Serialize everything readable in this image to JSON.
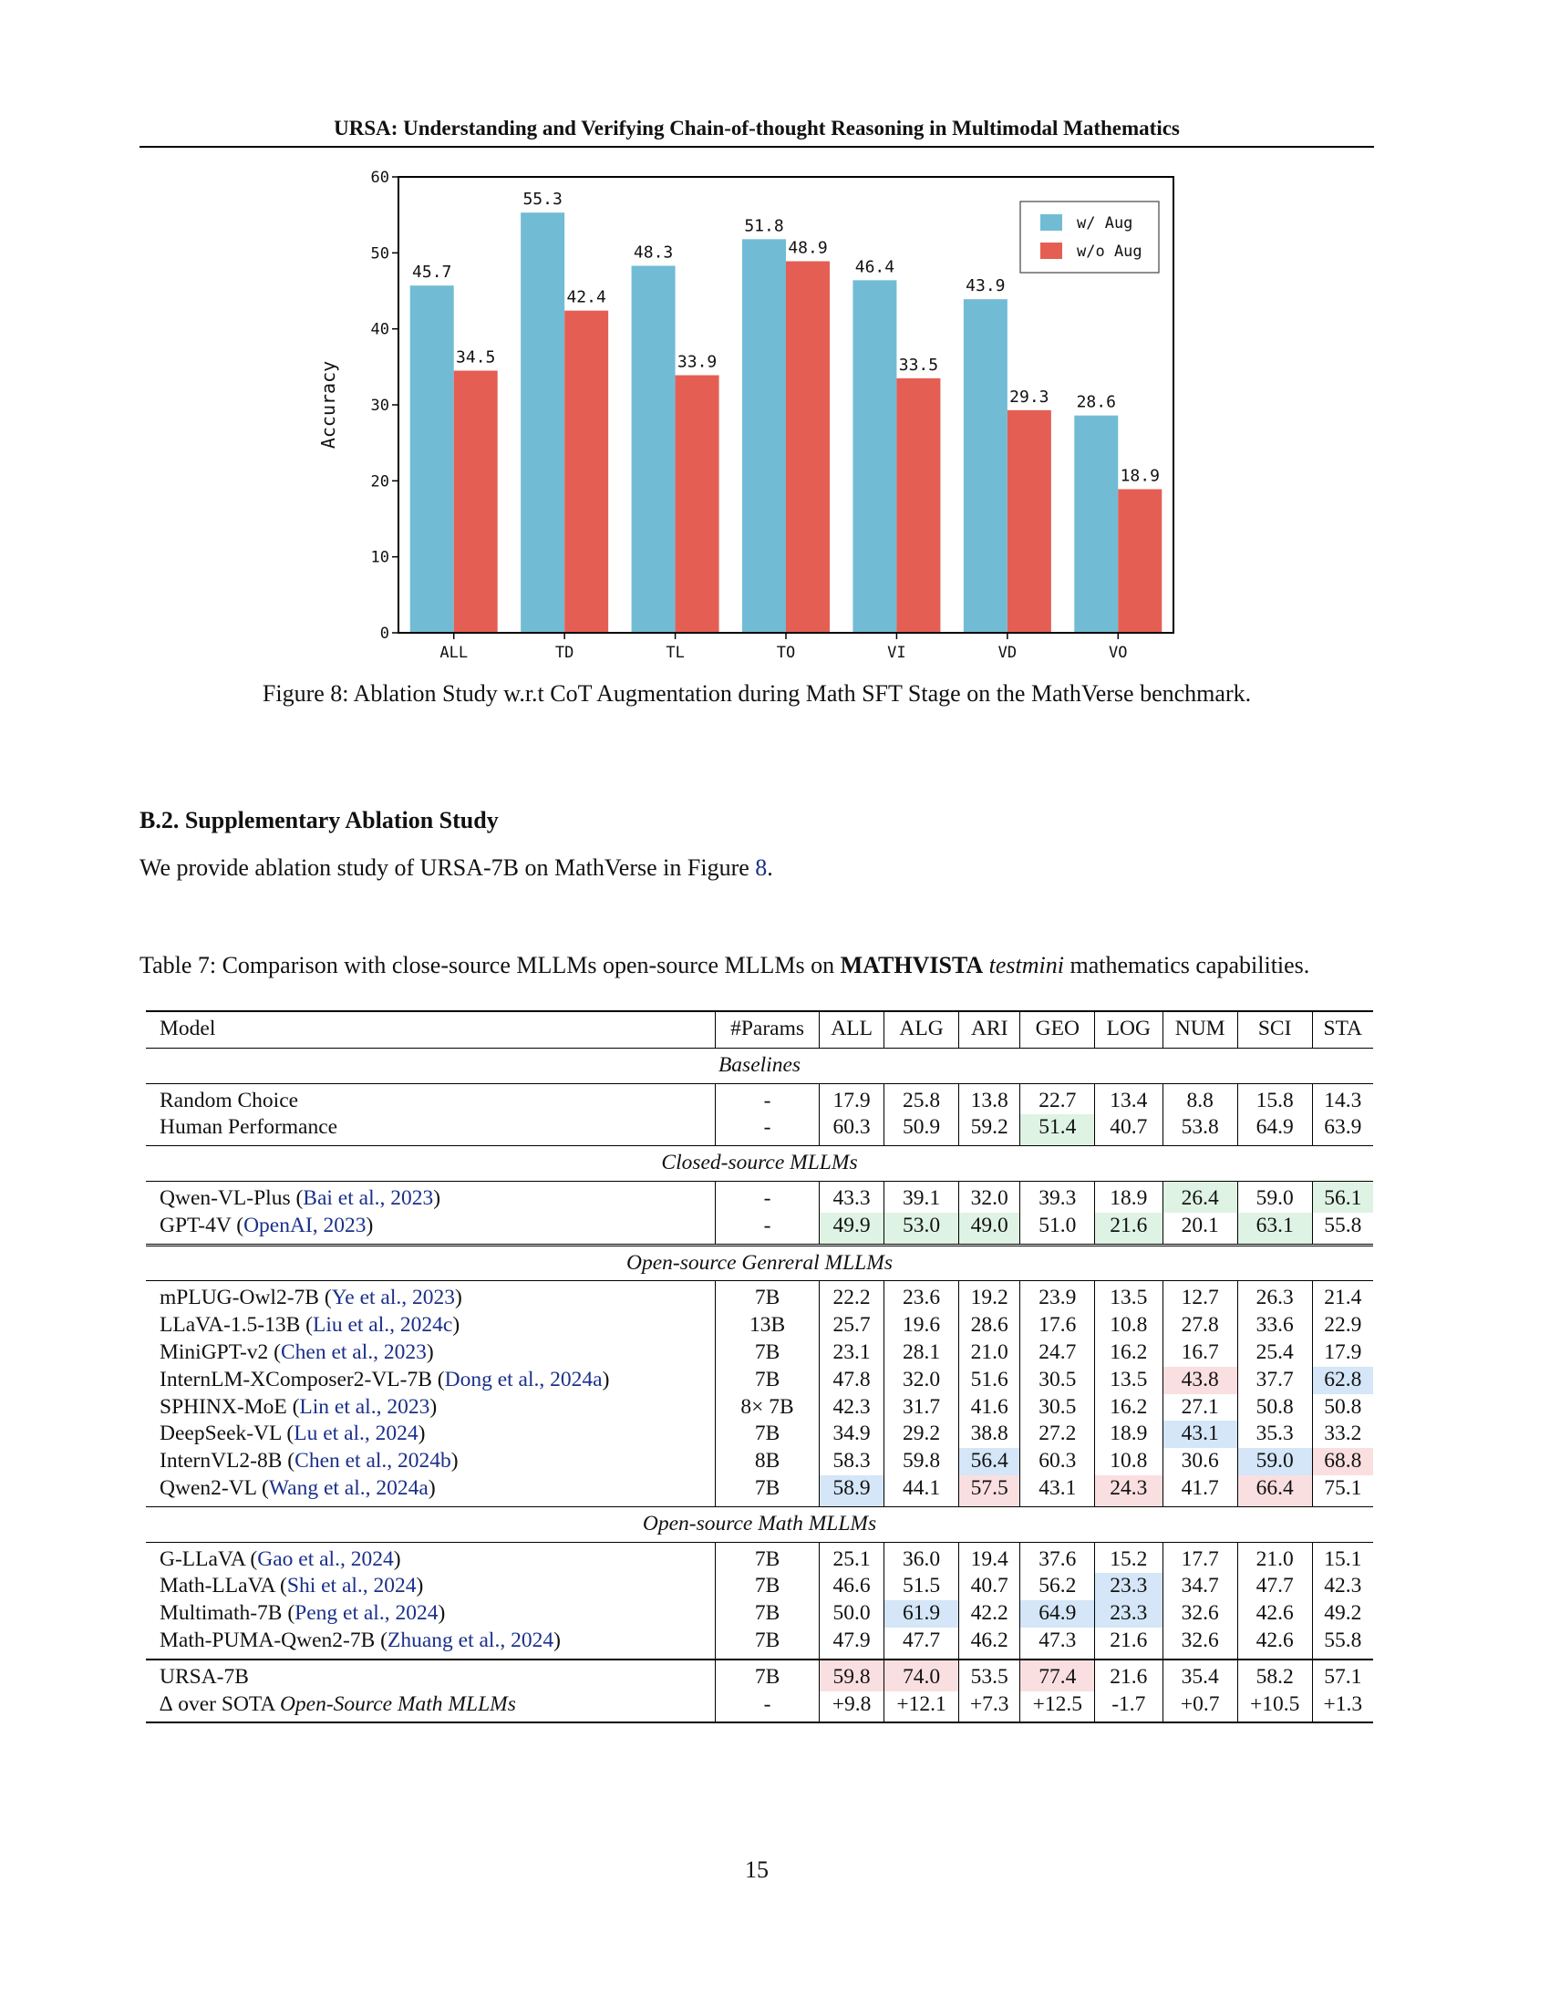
{
  "running_head": "URSA: Understanding and Verifying Chain-of-thought Reasoning in Multimodal Mathematics",
  "chart_data": {
    "type": "bar",
    "categories": [
      "ALL",
      "TD",
      "TL",
      "TO",
      "VI",
      "VD",
      "VO"
    ],
    "series": [
      {
        "name": "w/ Aug",
        "values": [
          45.7,
          55.3,
          48.3,
          51.8,
          46.4,
          43.9,
          28.6
        ],
        "color": "#71bcd4"
      },
      {
        "name": "w/o Aug",
        "values": [
          34.5,
          42.4,
          33.9,
          48.9,
          33.5,
          29.3,
          18.9
        ],
        "color": "#e55e54"
      }
    ],
    "ylabel": "Accuracy",
    "ylim": [
      0,
      60
    ],
    "yticks": [
      0,
      10,
      20,
      30,
      40,
      50,
      60
    ],
    "legend": "top-right",
    "grid": false
  },
  "figure_caption": "Figure 8: Ablation Study w.r.t CoT Augmentation during Math SFT Stage on the MathVerse benchmark.",
  "section": {
    "title": "B.2. Supplementary Ablation Study",
    "text_before": "We provide ablation study of URSA-7B on MathVerse in Figure ",
    "ref": "8",
    "text_after": "."
  },
  "table_caption": {
    "prefix": "Table 7: Comparison with close-source MLLMs open-source MLLMs on ",
    "bench": "MATHVISTA",
    "split": "testmini",
    "suffix": " mathematics capabilities."
  },
  "table": {
    "headers": [
      "Model",
      "#Params",
      "ALL",
      "ALG",
      "ARI",
      "GEO",
      "LOG",
      "NUM",
      "SCI",
      "STA"
    ],
    "groups": [
      {
        "title": "Baselines",
        "rows": [
          {
            "name": "Random Choice",
            "params": "-",
            "vals": [
              "17.9",
              "25.8",
              "13.8",
              "22.7",
              "13.4",
              "8.8",
              "15.8",
              "14.3"
            ],
            "hl": [
              "",
              "",
              "",
              "",
              "",
              "",
              "",
              ""
            ]
          },
          {
            "name": "Human Performance",
            "params": "-",
            "vals": [
              "60.3",
              "50.9",
              "59.2",
              "51.4",
              "40.7",
              "53.8",
              "64.9",
              "63.9"
            ],
            "hl": [
              "",
              "",
              "",
              "g",
              "",
              "",
              "",
              ""
            ]
          }
        ]
      },
      {
        "title": "Closed-source MLLMs",
        "rows": [
          {
            "name": "Qwen-VL-Plus (",
            "ref": "Bai et al., 2023",
            "tail": ")",
            "params": "-",
            "vals": [
              "43.3",
              "39.1",
              "32.0",
              "39.3",
              "18.9",
              "26.4",
              "59.0",
              "56.1"
            ],
            "hl": [
              "",
              "",
              "",
              "",
              "",
              "g",
              "",
              "g"
            ]
          },
          {
            "name": "GPT-4V (",
            "ref": "OpenAI, 2023",
            "tail": ")",
            "params": "-",
            "vals": [
              "49.9",
              "53.0",
              "49.0",
              "51.0",
              "21.6",
              "20.1",
              "63.1",
              "55.8"
            ],
            "hl": [
              "g",
              "g",
              "g",
              "",
              "g",
              "",
              "g",
              ""
            ]
          }
        ]
      },
      {
        "title": "Open-source Genreral MLLMs",
        "rows": [
          {
            "name": "mPLUG-Owl2-7B (",
            "ref": "Ye et al., 2023",
            "tail": ")",
            "params": "7B",
            "vals": [
              "22.2",
              "23.6",
              "19.2",
              "23.9",
              "13.5",
              "12.7",
              "26.3",
              "21.4"
            ],
            "hl": [
              "",
              "",
              "",
              "",
              "",
              "",
              "",
              ""
            ]
          },
          {
            "name": "LLaVA-1.5-13B (",
            "ref": "Liu et al., 2024c",
            "tail": ")",
            "params": "13B",
            "vals": [
              "25.7",
              "19.6",
              "28.6",
              "17.6",
              "10.8",
              "27.8",
              "33.6",
              "22.9"
            ],
            "hl": [
              "",
              "",
              "",
              "",
              "",
              "",
              "",
              ""
            ]
          },
          {
            "name": "MiniGPT-v2 (",
            "ref": "Chen et al., 2023",
            "tail": ")",
            "params": "7B",
            "vals": [
              "23.1",
              "28.1",
              "21.0",
              "24.7",
              "16.2",
              "16.7",
              "25.4",
              "17.9"
            ],
            "hl": [
              "",
              "",
              "",
              "",
              "",
              "",
              "",
              ""
            ]
          },
          {
            "name": "InternLM-XComposer2-VL-7B (",
            "ref": "Dong et al., 2024a",
            "tail": ")",
            "params": "7B",
            "vals": [
              "47.8",
              "32.0",
              "51.6",
              "30.5",
              "13.5",
              "43.8",
              "37.7",
              "62.8"
            ],
            "hl": [
              "",
              "",
              "",
              "",
              "",
              "r",
              "",
              "b"
            ]
          },
          {
            "name": "SPHINX-MoE (",
            "ref": "Lin et al., 2023",
            "tail": ")",
            "params": "8× 7B",
            "vals": [
              "42.3",
              "31.7",
              "41.6",
              "30.5",
              "16.2",
              "27.1",
              "50.8",
              "50.8"
            ],
            "hl": [
              "",
              "",
              "",
              "",
              "",
              "",
              "",
              ""
            ]
          },
          {
            "name": "DeepSeek-VL (",
            "ref": "Lu et al., 2024",
            "tail": ")",
            "params": "7B",
            "vals": [
              "34.9",
              "29.2",
              "38.8",
              "27.2",
              "18.9",
              "43.1",
              "35.3",
              "33.2"
            ],
            "hl": [
              "",
              "",
              "",
              "",
              "",
              "b",
              "",
              ""
            ]
          },
          {
            "name": "InternVL2-8B (",
            "ref": "Chen et al., 2024b",
            "tail": ")",
            "params": "8B",
            "vals": [
              "58.3",
              "59.8",
              "56.4",
              "60.3",
              "10.8",
              "30.6",
              "59.0",
              "68.8"
            ],
            "hl": [
              "",
              "",
              "b",
              "",
              "",
              "",
              "b",
              "r"
            ]
          },
          {
            "name": "Qwen2-VL (",
            "ref": "Wang et al., 2024a",
            "tail": ")",
            "params": "7B",
            "vals": [
              "58.9",
              "44.1",
              "57.5",
              "43.1",
              "24.3",
              "41.7",
              "66.4",
              "75.1"
            ],
            "hl": [
              "b",
              "",
              "r",
              "",
              "r",
              "",
              "r",
              ""
            ]
          }
        ]
      },
      {
        "title": "Open-source Math MLLMs",
        "rows": [
          {
            "name": "G-LLaVA (",
            "ref": "Gao et al., 2024",
            "tail": ")",
            "params": "7B",
            "vals": [
              "25.1",
              "36.0",
              "19.4",
              "37.6",
              "15.2",
              "17.7",
              "21.0",
              "15.1"
            ],
            "hl": [
              "",
              "",
              "",
              "",
              "",
              "",
              "",
              ""
            ]
          },
          {
            "name": "Math-LLaVA (",
            "ref": "Shi et al., 2024",
            "tail": ")",
            "params": "7B",
            "vals": [
              "46.6",
              "51.5",
              "40.7",
              "56.2",
              "23.3",
              "34.7",
              "47.7",
              "42.3"
            ],
            "hl": [
              "",
              "",
              "",
              "",
              "b",
              "",
              "",
              ""
            ]
          },
          {
            "name": "Multimath-7B (",
            "ref": "Peng et al., 2024",
            "tail": ")",
            "params": "7B",
            "vals": [
              "50.0",
              "61.9",
              "42.2",
              "64.9",
              "23.3",
              "32.6",
              "42.6",
              "49.2"
            ],
            "hl": [
              "",
              "b",
              "",
              "b",
              "b",
              "",
              "",
              ""
            ]
          },
          {
            "name": "Math-PUMA-Qwen2-7B (",
            "ref": "Zhuang et al., 2024",
            "tail": ")",
            "params": "7B",
            "vals": [
              "47.9",
              "47.7",
              "46.2",
              "47.3",
              "21.6",
              "32.6",
              "42.6",
              "55.8"
            ],
            "hl": [
              "",
              "",
              "",
              "",
              "",
              "",
              "",
              ""
            ]
          }
        ]
      }
    ],
    "ursa": {
      "name": "URSA-7B",
      "params": "7B",
      "vals": [
        "59.8",
        "74.0",
        "53.5",
        "77.4",
        "21.6",
        "35.4",
        "58.2",
        "57.1"
      ],
      "hl": [
        "r",
        "r",
        "",
        "r",
        "",
        "",
        "",
        ""
      ]
    },
    "delta": {
      "prefix": "∆ over SOTA ",
      "italic": "Open-Source Math MLLMs",
      "params": "-",
      "vals": [
        "+9.8",
        "+12.1",
        "+7.3",
        "+12.5",
        "-1.7",
        "+0.7",
        "+10.5",
        "+1.3"
      ]
    }
  },
  "page_number": "15"
}
